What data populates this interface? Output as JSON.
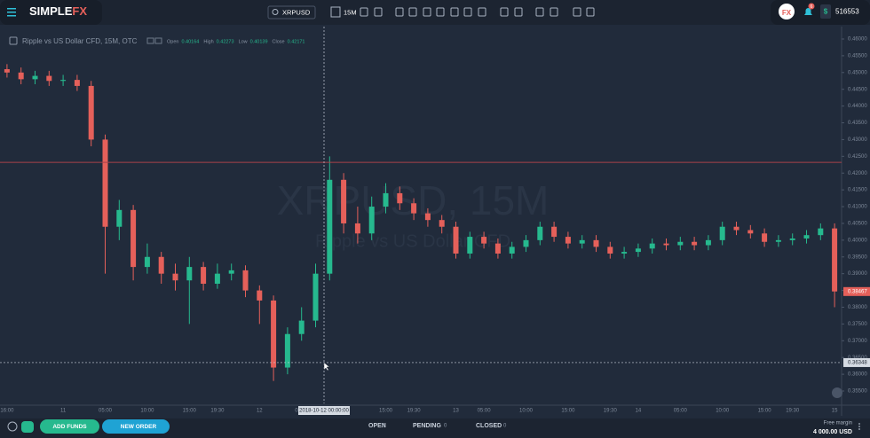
{
  "topbar": {
    "logo": "SIMPLE",
    "logo_accent": "FX",
    "symbol": "XRPUSD",
    "timeframe": "15M",
    "avatar": "FX",
    "notifications": 6,
    "balance_currency": "$",
    "balance": 516553
  },
  "chart_data": {
    "type": "candlestick",
    "title": "Ripple vs US Dollar CFD, 15M, OTC",
    "ohlc_legend": [
      {
        "label": "Open",
        "value": 0.40164
      },
      {
        "label": "High",
        "value": 0.42273
      },
      {
        "label": "Low",
        "value": 0.40139
      },
      {
        "label": "Close",
        "value": 0.42171
      }
    ],
    "watermark": "XRPUSD, 15M",
    "watermark_subtitle": "Ripple vs US Dollar CFD",
    "categories": [
      "16:00",
      null,
      null,
      null,
      "11",
      null,
      null,
      "05:00",
      null,
      null,
      "10:00",
      null,
      null,
      "15:00",
      null,
      "19:30",
      null,
      null,
      "12",
      null,
      null,
      "05:00",
      null,
      null,
      null,
      null,
      null,
      "15:00",
      null,
      "19:30",
      null,
      null,
      "13",
      null,
      "05:00",
      null,
      null,
      "10:00",
      null,
      null,
      "15:00",
      null,
      null,
      "19:30",
      null,
      "14",
      null,
      null,
      "05:00",
      null,
      null,
      "10:00",
      null,
      null,
      "15:00",
      null,
      "19:30",
      null,
      null,
      "15"
    ],
    "open": [
      0.451,
      0.45,
      0.448,
      0.449,
      0.4475,
      0.4478,
      0.446,
      0.43,
      0.404,
      0.409,
      0.392,
      0.395,
      0.39,
      0.388,
      0.392,
      0.387,
      0.39,
      0.391,
      0.385,
      0.382,
      0.362,
      0.372,
      0.376,
      0.39,
      0.418,
      0.405,
      0.402,
      0.41,
      0.414,
      0.411,
      0.408,
      0.406,
      0.404,
      0.396,
      0.401,
      0.399,
      0.396,
      0.398,
      0.4,
      0.404,
      0.401,
      0.399,
      0.4,
      0.398,
      0.396,
      0.3965,
      0.3975,
      0.399,
      0.3985,
      0.3995,
      0.3985,
      0.4,
      0.404,
      0.403,
      0.402,
      0.3995,
      0.4,
      0.4005,
      0.4015,
      0.4035
    ],
    "high": [
      0.4525,
      0.4515,
      0.4505,
      0.4505,
      0.4493,
      0.4493,
      0.4475,
      0.4315,
      0.412,
      0.4105,
      0.399,
      0.3965,
      0.393,
      0.395,
      0.3935,
      0.393,
      0.393,
      0.3925,
      0.3865,
      0.3835,
      0.374,
      0.38,
      0.393,
      0.425,
      0.42,
      0.41,
      0.413,
      0.417,
      0.416,
      0.4125,
      0.4095,
      0.4075,
      0.4055,
      0.4025,
      0.4025,
      0.4005,
      0.3995,
      0.4015,
      0.4055,
      0.4055,
      0.4025,
      0.4015,
      0.4015,
      0.3995,
      0.398,
      0.399,
      0.4005,
      0.4005,
      0.401,
      0.401,
      0.4015,
      0.4055,
      0.4055,
      0.4045,
      0.4035,
      0.4015,
      0.402,
      0.403,
      0.405,
      0.405
    ],
    "low": [
      0.4485,
      0.4465,
      0.4465,
      0.446,
      0.446,
      0.4445,
      0.428,
      0.39,
      0.4,
      0.388,
      0.39,
      0.387,
      0.385,
      0.375,
      0.385,
      0.3855,
      0.388,
      0.383,
      0.375,
      0.358,
      0.36,
      0.37,
      0.374,
      0.388,
      0.402,
      0.399,
      0.4,
      0.408,
      0.409,
      0.406,
      0.404,
      0.402,
      0.3945,
      0.3945,
      0.3975,
      0.3945,
      0.3945,
      0.3965,
      0.3985,
      0.3995,
      0.3975,
      0.3975,
      0.3965,
      0.3945,
      0.3945,
      0.395,
      0.396,
      0.397,
      0.397,
      0.397,
      0.397,
      0.3985,
      0.4015,
      0.4005,
      0.398,
      0.398,
      0.3985,
      0.399,
      0.4,
      0.38
    ],
    "close": [
      0.45,
      0.448,
      0.449,
      0.4475,
      0.4478,
      0.446,
      0.43,
      0.404,
      0.409,
      0.392,
      0.395,
      0.39,
      0.388,
      0.392,
      0.387,
      0.39,
      0.391,
      0.385,
      0.382,
      0.362,
      0.372,
      0.376,
      0.39,
      0.418,
      0.405,
      0.402,
      0.41,
      0.414,
      0.411,
      0.408,
      0.406,
      0.404,
      0.396,
      0.401,
      0.399,
      0.396,
      0.398,
      0.4,
      0.404,
      0.401,
      0.399,
      0.4,
      0.398,
      0.396,
      0.3965,
      0.3975,
      0.399,
      0.3985,
      0.3995,
      0.3985,
      0.4,
      0.404,
      0.403,
      0.402,
      0.3995,
      0.4,
      0.4005,
      0.4015,
      0.4035,
      0.3847
    ],
    "up_color": "#26b98e",
    "down_color": "#e5605a",
    "ylim": [
      0.3513,
      0.4637
    ],
    "yticks": [
      {
        "value": 0.46,
        "label": "0.46000"
      },
      {
        "value": 0.455,
        "label": "0.45500"
      },
      {
        "value": 0.45,
        "label": "0.45000"
      },
      {
        "value": 0.445,
        "label": "0.44500"
      },
      {
        "value": 0.44,
        "label": "0.44000"
      },
      {
        "value": 0.435,
        "label": "0.43500"
      },
      {
        "value": 0.43,
        "label": "0.43000"
      },
      {
        "value": 0.425,
        "label": "0.42500"
      },
      {
        "value": 0.42,
        "label": "0.42000"
      },
      {
        "value": 0.415,
        "label": "0.41500"
      },
      {
        "value": 0.41,
        "label": "0.41000"
      },
      {
        "value": 0.405,
        "label": "0.40500"
      },
      {
        "value": 0.4,
        "label": "0.40000"
      },
      {
        "value": 0.395,
        "label": "0.39500"
      },
      {
        "value": 0.39,
        "label": "0.39000"
      },
      {
        "value": 0.385,
        "label": "0.38500"
      },
      {
        "value": 0.38,
        "label": "0.38000"
      },
      {
        "value": 0.375,
        "label": "0.37500"
      },
      {
        "value": 0.37,
        "label": "0.37000"
      },
      {
        "value": 0.365,
        "label": "0.36500"
      },
      {
        "value": 0.36,
        "label": "0.36000"
      },
      {
        "value": 0.355,
        "label": "0.35500"
      }
    ],
    "last_price": 0.38467,
    "alert_line": 0.4232,
    "crosshair": {
      "x_label": "2018-10-12 00:00:00",
      "y": 0.36348
    }
  },
  "bottombar": {
    "buttons": [
      "ADD FUNDS",
      "NEW ORDER"
    ],
    "tabs": [
      {
        "label": "OPEN",
        "count": 0
      },
      {
        "label": "PENDING",
        "count": 0
      },
      {
        "label": "CLOSED",
        "count": 0
      }
    ],
    "free_margin_label": "Free margin",
    "free_margin": "4 000.00 USD"
  }
}
